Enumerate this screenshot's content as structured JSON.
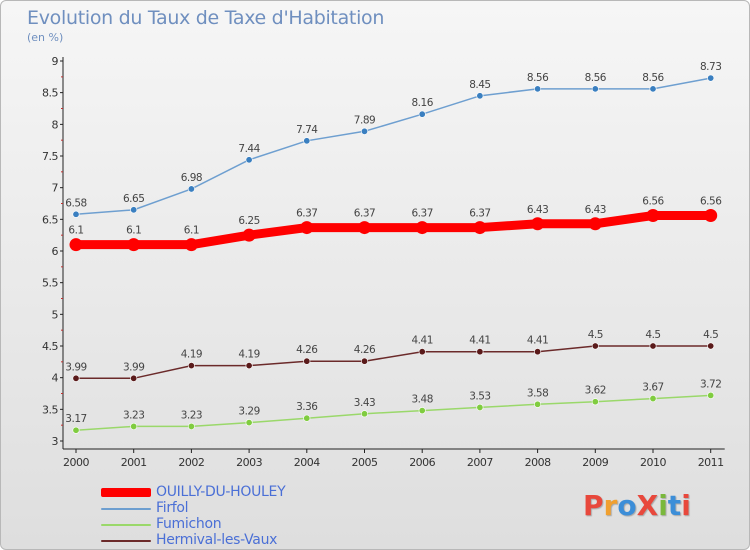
{
  "header": {
    "title": "Evolution du Taux de Taxe d'Habitation",
    "subtitle": "(en %)"
  },
  "logo": {
    "text": "ProXiti",
    "colors": [
      "#e8483c",
      "#f0a030",
      "#3c8ed8",
      "#e8483c",
      "#7ab83c",
      "#3c8ed8",
      "#e8483c"
    ]
  },
  "chart_data": {
    "type": "line",
    "title": "Evolution du Taux de Taxe d'Habitation",
    "subtitle": "(en %)",
    "xlabel": "",
    "ylabel": "",
    "categories": [
      "2000",
      "2001",
      "2002",
      "2003",
      "2004",
      "2005",
      "2006",
      "2007",
      "2008",
      "2009",
      "2010",
      "2011"
    ],
    "ylim": [
      3,
      9
    ],
    "yticks": [
      "3",
      "3.5",
      "4",
      "4.5",
      "5",
      "5.5",
      "6",
      "6.5",
      "7",
      "7.5",
      "8",
      "8.5",
      "9"
    ],
    "grid": false,
    "legend_position": "bottom-left",
    "series": [
      {
        "name": "OUILLY-DU-HOULEY",
        "color": "#ff0000",
        "emphasis": true,
        "values": [
          6.1,
          6.1,
          6.1,
          6.25,
          6.37,
          6.37,
          6.37,
          6.37,
          6.43,
          6.43,
          6.56,
          6.56
        ]
      },
      {
        "name": "Firfol",
        "color": "#6e9fd0",
        "marker": "#3a7fc0",
        "emphasis": false,
        "values": [
          6.58,
          6.65,
          6.98,
          7.44,
          7.74,
          7.89,
          8.16,
          8.45,
          8.56,
          8.56,
          8.56,
          8.73
        ]
      },
      {
        "name": "Fumichon",
        "color": "#9ad86a",
        "marker": "#80cc40",
        "emphasis": false,
        "values": [
          3.17,
          3.23,
          3.23,
          3.29,
          3.36,
          3.43,
          3.48,
          3.53,
          3.58,
          3.62,
          3.67,
          3.72
        ]
      },
      {
        "name": "Hermival-les-Vaux",
        "color": "#6b2a2a",
        "marker": "#5a1a1a",
        "emphasis": false,
        "values": [
          3.99,
          3.99,
          4.19,
          4.19,
          4.26,
          4.26,
          4.41,
          4.41,
          4.41,
          4.5,
          4.5,
          4.5
        ]
      }
    ]
  }
}
